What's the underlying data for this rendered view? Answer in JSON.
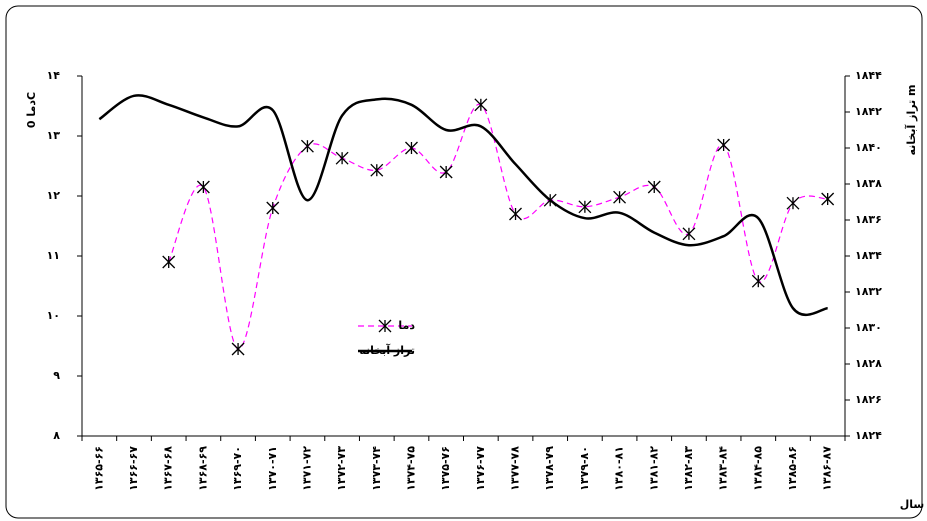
{
  "chart_data": {
    "type": "line",
    "x_label": "سال",
    "y_label": "دما 0C",
    "y2_label": "تراز آبخانه m",
    "categories": [
      "۱۳۶۵-۶۶",
      "۱۳۶۶-۶۷",
      "۱۳۶۷-۶۸",
      "۱۳۶۸-۶۹",
      "۱۳۶۹-۷۰",
      "۱۳۷۰-۷۱",
      "۱۳۷۱-۷۲",
      "۱۳۷۲-۷۳",
      "۱۳۷۳-۷۴",
      "۱۳۷۴-۷۵",
      "۱۳۷۵-۷۶",
      "۱۳۷۶-۷۷",
      "۱۳۷۷-۷۸",
      "۱۳۷۸-۷۹",
      "۱۳۷۹-۸۰",
      "۱۳۸۰-۸۱",
      "۱۳۸۱-۸۲",
      "۱۳۸۲-۸۳",
      "۱۳۸۳-۸۴",
      "۱۳۸۴-۸۵",
      "۱۳۸۵-۸۶",
      "۱۳۸۶-۸۷"
    ],
    "series": [
      {
        "name": "دما",
        "color": "#ff00ff",
        "values": [
          null,
          null,
          10.9,
          12.15,
          9.45,
          11.8,
          12.83,
          12.63,
          12.43,
          12.8,
          12.4,
          13.52,
          11.7,
          11.93,
          11.82,
          11.98,
          12.15,
          11.37,
          12.85,
          10.58,
          11.88,
          11.95
        ]
      },
      {
        "name": "تراز آبخانه",
        "color": "#000000",
        "axis": "y2",
        "values": [
          1841.6,
          1842.9,
          1842.4,
          1841.7,
          1841.2,
          1842.1,
          1837.1,
          1841.8,
          1842.7,
          1842.4,
          1841,
          1841.2,
          1839.1,
          1837.1,
          1836.1,
          1836.4,
          1835.3,
          1834.6,
          1835.1,
          1836.1,
          1831.1,
          1831.1
        ]
      }
    ],
    "ylim": [
      8,
      14
    ],
    "yticks": [
      {
        "value": 8,
        "label": "۸"
      },
      {
        "value": 9,
        "label": "۹"
      },
      {
        "value": 10,
        "label": "۱۰"
      },
      {
        "value": 11,
        "label": "۱۱"
      },
      {
        "value": 12,
        "label": "۱۲"
      },
      {
        "value": 13,
        "label": "۱۳"
      },
      {
        "value": 14,
        "label": "۱۴"
      }
    ],
    "y2lim": [
      1824,
      1844
    ],
    "y2ticks": [
      {
        "value": 1824,
        "label": "۱۸۲۴"
      },
      {
        "value": 1826,
        "label": "۱۸۲۶"
      },
      {
        "value": 1828,
        "label": "۱۸۲۸"
      },
      {
        "value": 1830,
        "label": "۱۸۳۰"
      },
      {
        "value": 1832,
        "label": "۱۸۳۲"
      },
      {
        "value": 1834,
        "label": "۱۸۳۴"
      },
      {
        "value": 1836,
        "label": "۱۸۳۶"
      },
      {
        "value": 1838,
        "label": "۱۸۳۸"
      },
      {
        "value": 1840,
        "label": "۱۸۴۰"
      },
      {
        "value": 1842,
        "label": "۱۸۴۲"
      },
      {
        "value": 1844,
        "label": "۱۸۴۴"
      }
    ]
  }
}
